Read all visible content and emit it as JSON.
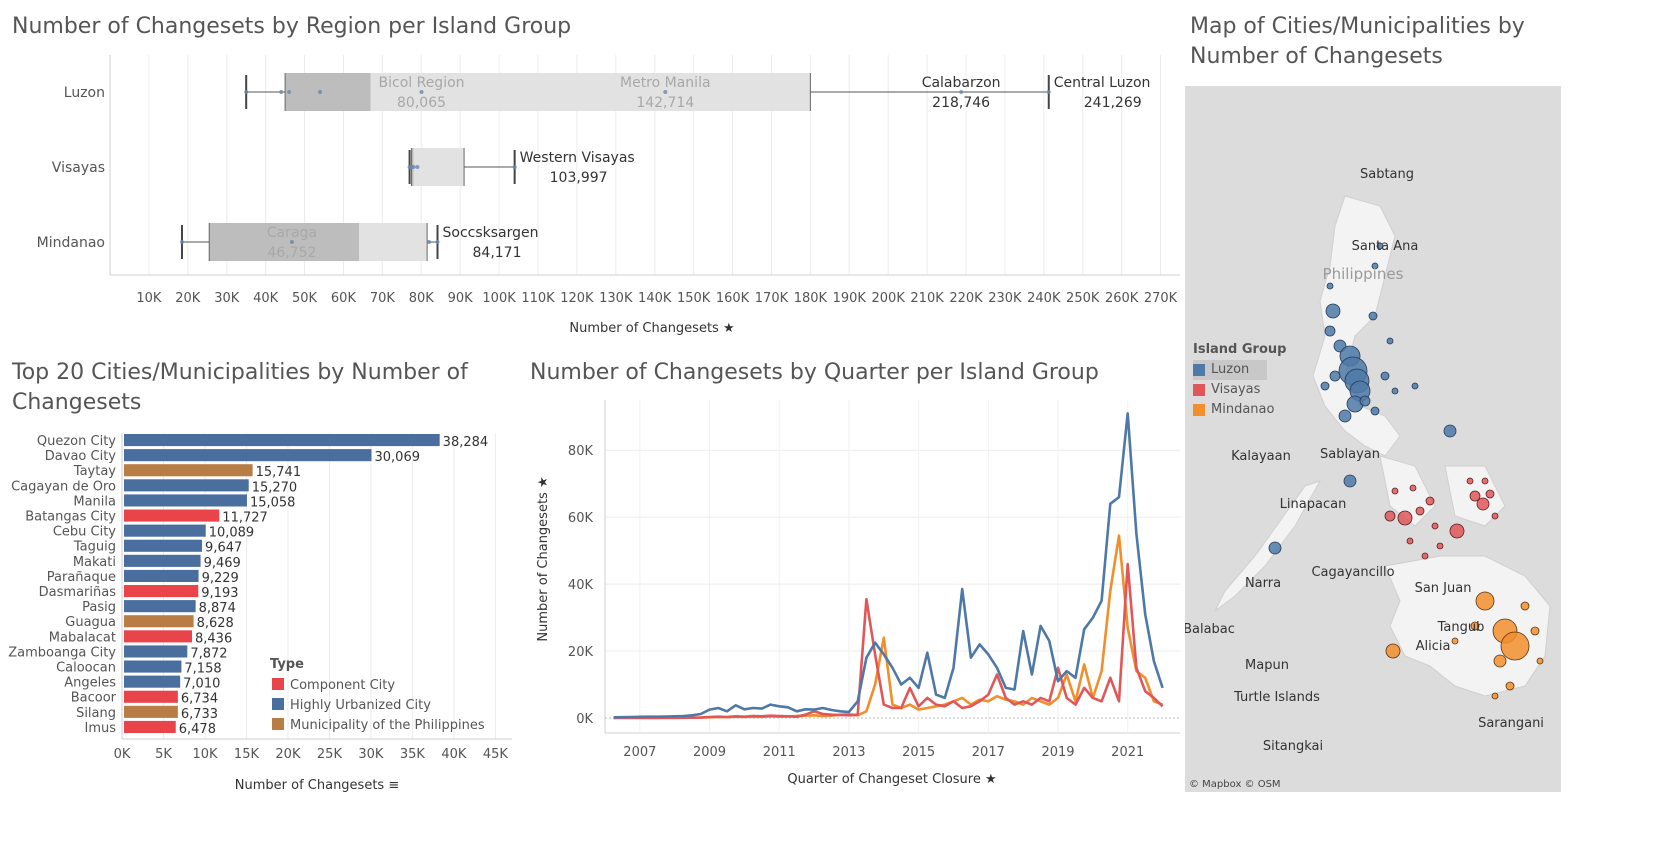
{
  "titles": {
    "region": "Number of Changesets by Region per Island Group",
    "top20": "Top 20 Cities/Municipalities by Number of Changesets",
    "quarter": "Number of Changesets by Quarter per Island Group",
    "map": "Map of Cities/Municipalities by Number of Changesets"
  },
  "colors": {
    "luzon": "#4e79a7",
    "visayas": "#e15759",
    "mindanao": "#f28e2b",
    "component_city": "#e8444a",
    "huc": "#4a6f9f",
    "municipality": "#b87d45"
  },
  "chart_data": [
    {
      "type": "box",
      "title": "Number of Changesets by Region per Island Group",
      "xlabel": "Number of Changesets",
      "xlim": [
        0,
        275000
      ],
      "xticks": [
        "10K",
        "20K",
        "30K",
        "40K",
        "50K",
        "60K",
        "70K",
        "80K",
        "90K",
        "100K",
        "110K",
        "120K",
        "130K",
        "140K",
        "150K",
        "160K",
        "170K",
        "180K",
        "190K",
        "200K",
        "210K",
        "220K",
        "230K",
        "240K",
        "250K",
        "260K",
        "270K"
      ],
      "categories": [
        "Luzon",
        "Visayas",
        "Mindanao"
      ],
      "boxes": [
        {
          "group": "Luzon",
          "whisker_low": 35000,
          "q1": 45000,
          "median": 67000,
          "q3": 180000,
          "whisker_high": 241269,
          "points": [
            35000,
            44000,
            46000,
            54000,
            80065,
            142714,
            218746,
            241269
          ]
        },
        {
          "group": "Visayas",
          "whisker_low": 77000,
          "q1": 77500,
          "median": 78000,
          "q3": 91000,
          "whisker_high": 103997,
          "points": [
            77000,
            77500,
            78000,
            79000,
            103997
          ]
        },
        {
          "group": "Mindanao",
          "whisker_low": 18500,
          "q1": 25500,
          "median": 64000,
          "q3": 81500,
          "whisker_high": 84171,
          "points": [
            18500,
            46752,
            82000,
            84171
          ]
        }
      ],
      "labels": [
        {
          "group": "Luzon",
          "name": "Bicol Region",
          "value": "80,065",
          "x": 80065,
          "muted": true
        },
        {
          "group": "Luzon",
          "name": "Metro Manila",
          "value": "142,714",
          "x": 142714,
          "muted": true
        },
        {
          "group": "Luzon",
          "name": "Calabarzon",
          "value": "218,746",
          "x": 218746,
          "muted": false
        },
        {
          "group": "Luzon",
          "name": "Central Luzon",
          "value": "241,269",
          "x": 241269,
          "muted": false
        },
        {
          "group": "Visayas",
          "name": "Western Visayas",
          "value": "103,997",
          "x": 103997,
          "muted": false
        },
        {
          "group": "Mindanao",
          "name": "Caraga",
          "value": "46,752",
          "x": 46752,
          "muted": true
        },
        {
          "group": "Mindanao",
          "name": "Soccsksargen",
          "value": "84,171",
          "x": 84171,
          "muted": false
        }
      ]
    },
    {
      "type": "bar",
      "orientation": "horizontal",
      "title": "Top 20 Cities/Municipalities by Number of Changesets",
      "xlabel": "Number of Changesets",
      "xlim": [
        0,
        47000
      ],
      "xticks": [
        "0K",
        "5K",
        "10K",
        "15K",
        "20K",
        "25K",
        "30K",
        "35K",
        "40K",
        "45K"
      ],
      "legend_title": "Type",
      "legend": [
        {
          "name": "Component City",
          "key": "component_city"
        },
        {
          "name": "Highly Urbanized City",
          "key": "huc"
        },
        {
          "name": "Municipality of the Philippines",
          "key": "municipality"
        }
      ],
      "categories": [
        "Quezon City",
        "Davao City",
        "Taytay",
        "Cagayan de Oro",
        "Manila",
        "Batangas City",
        "Cebu City",
        "Taguig",
        "Makati",
        "Parañaque",
        "Dasmariñas",
        "Pasig",
        "Guagua",
        "Mabalacat",
        "Zamboanga City",
        "Caloocan",
        "Angeles",
        "Bacoor",
        "Silang",
        "Imus"
      ],
      "values": [
        38284,
        30069,
        15741,
        15270,
        15058,
        11727,
        10089,
        9647,
        9469,
        9229,
        9193,
        8874,
        8628,
        8436,
        7872,
        7158,
        7010,
        6734,
        6733,
        6478
      ],
      "value_labels": [
        "38,284",
        "30,069",
        "15,741",
        "15,270",
        "15,058",
        "11,727",
        "10,089",
        "9,647",
        "9,469",
        "9,229",
        "9,193",
        "8,874",
        "8,628",
        "8,436",
        "7,872",
        "7,158",
        "7,010",
        "6,734",
        "6,733",
        "6,478"
      ],
      "types": [
        "huc",
        "huc",
        "municipality",
        "huc",
        "huc",
        "component_city",
        "huc",
        "huc",
        "huc",
        "huc",
        "component_city",
        "huc",
        "municipality",
        "component_city",
        "huc",
        "huc",
        "huc",
        "component_city",
        "municipality",
        "component_city"
      ]
    },
    {
      "type": "line",
      "title": "Number of Changesets by Quarter per Island Group",
      "xlabel": "Quarter of Changeset Closure",
      "ylabel": "Number of Changesets",
      "xlim": [
        2006.0,
        2022.5
      ],
      "ylim": [
        0,
        95000
      ],
      "xticks": [
        "2007",
        "2009",
        "2011",
        "2013",
        "2015",
        "2017",
        "2019",
        "2021"
      ],
      "yticks": [
        "0K",
        "20K",
        "40K",
        "60K",
        "80K"
      ],
      "x": [
        2006.25,
        2006.5,
        2006.75,
        2007.0,
        2007.25,
        2007.5,
        2007.75,
        2008.0,
        2008.25,
        2008.5,
        2008.75,
        2009.0,
        2009.25,
        2009.5,
        2009.75,
        2010.0,
        2010.25,
        2010.5,
        2010.75,
        2011.0,
        2011.25,
        2011.5,
        2011.75,
        2012.0,
        2012.25,
        2012.5,
        2012.75,
        2013.0,
        2013.25,
        2013.5,
        2013.75,
        2014.0,
        2014.25,
        2014.5,
        2014.75,
        2015.0,
        2015.25,
        2015.5,
        2015.75,
        2016.0,
        2016.25,
        2016.5,
        2016.75,
        2017.0,
        2017.25,
        2017.5,
        2017.75,
        2018.0,
        2018.25,
        2018.5,
        2018.75,
        2019.0,
        2019.25,
        2019.5,
        2019.75,
        2020.0,
        2020.25,
        2020.5,
        2020.75,
        2021.0,
        2021.25,
        2021.5,
        2021.75,
        2022.0
      ],
      "series": [
        {
          "name": "Luzon",
          "color_key": "luzon",
          "values": [
            200,
            250,
            300,
            350,
            400,
            400,
            450,
            500,
            600,
            800,
            1200,
            2500,
            3000,
            2000,
            3800,
            2600,
            3000,
            2800,
            4000,
            3500,
            3200,
            2000,
            2600,
            2500,
            3000,
            2400,
            2000,
            1800,
            5000,
            18000,
            22500,
            19000,
            15000,
            10000,
            12000,
            9000,
            19500,
            7000,
            6000,
            15000,
            38500,
            18000,
            22000,
            19000,
            15000,
            9000,
            8500,
            26000,
            13000,
            27500,
            23000,
            11000,
            14000,
            12000,
            26500,
            30000,
            35000,
            64000,
            66000,
            91000,
            55000,
            31000,
            17000,
            9000
          ]
        },
        {
          "name": "Visayas",
          "color_key": "visayas",
          "values": [
            50,
            50,
            50,
            50,
            60,
            60,
            60,
            70,
            80,
            100,
            150,
            300,
            400,
            300,
            500,
            400,
            600,
            500,
            700,
            600,
            500,
            400,
            1000,
            2000,
            1200,
            1000,
            900,
            800,
            1000,
            35500,
            19000,
            4000,
            3000,
            3000,
            9000,
            3500,
            6000,
            4000,
            3500,
            5000,
            3000,
            3500,
            5000,
            7000,
            13000,
            6000,
            4000,
            5000,
            4000,
            6000,
            5000,
            15000,
            6000,
            4000,
            9000,
            6000,
            5000,
            12000,
            5000,
            46000,
            15000,
            8000,
            6000,
            3500
          ]
        },
        {
          "name": "Mindanao",
          "color_key": "mindanao",
          "values": [
            30,
            30,
            30,
            40,
            40,
            40,
            50,
            50,
            60,
            80,
            120,
            200,
            300,
            250,
            400,
            300,
            400,
            350,
            500,
            400,
            450,
            600,
            700,
            800,
            600,
            700,
            1000,
            1100,
            800,
            2000,
            10000,
            24000,
            4000,
            3000,
            4000,
            2500,
            3000,
            3500,
            4000,
            5000,
            6000,
            4000,
            5500,
            5000,
            6500,
            5500,
            5000,
            4000,
            6000,
            5000,
            4000,
            6000,
            13000,
            5000,
            16000,
            6000,
            14000,
            38000,
            54500,
            27000,
            14000,
            12000,
            5000,
            4000
          ]
        }
      ]
    }
  ],
  "map": {
    "legend_title": "Island Group",
    "legend": [
      {
        "name": "Luzon",
        "key": "luzon"
      },
      {
        "name": "Visayas",
        "key": "visayas"
      },
      {
        "name": "Mindanao",
        "key": "mindanao"
      }
    ],
    "country_label": "Philippines",
    "place_labels": [
      "Sabtang",
      "Santa Ana",
      "Kalayaan",
      "Sablayan",
      "Linapacan",
      "Cagayancillo",
      "San Juan",
      "Narra",
      "Tangub",
      "Alicia",
      "Balabac",
      "Mapun",
      "Turtle Islands",
      "Sarangani",
      "Sitangkai"
    ],
    "attribution": "© Mapbox © OSM"
  }
}
